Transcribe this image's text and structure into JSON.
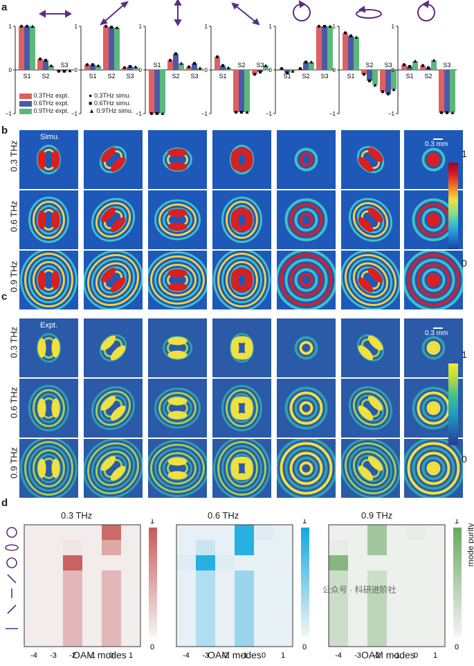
{
  "panels": {
    "a": "a",
    "b": "b",
    "c": "c",
    "d": "d"
  },
  "bar_legend": {
    "expt": [
      "0.3THz expt.",
      "0.6THz expt.",
      "0.9THz expt."
    ],
    "simu": [
      "0.3THz simu.",
      "0.6THz simu.",
      "0.9THz simu."
    ]
  },
  "bar_colors": [
    "#e06060",
    "#4a5aa8",
    "#5cb87a"
  ],
  "stokes_labels": [
    "S1",
    "S2",
    "S3"
  ],
  "bar_axis_ticks": [
    "1",
    "0",
    "−1"
  ],
  "pol_icons": [
    "horizontal-arrow",
    "diagonal-arrow",
    "vertical-arrow",
    "antidiagonal-arrow",
    "circular-right",
    "ellipse",
    "circular-left"
  ],
  "chart_data": [
    {
      "type": "bar",
      "categories": [
        "S1",
        "S2",
        "S3"
      ],
      "series": [
        {
          "name": "0.3THz expt.",
          "values": [
            1.0,
            0.25,
            -0.03
          ]
        },
        {
          "name": "0.6THz expt.",
          "values": [
            1.0,
            0.22,
            -0.03
          ]
        },
        {
          "name": "0.9THz expt.",
          "values": [
            1.0,
            0.1,
            -0.02
          ]
        }
      ],
      "ylim": [
        -1,
        1
      ]
    },
    {
      "type": "bar",
      "categories": [
        "S1",
        "S2",
        "S3"
      ],
      "series": [
        {
          "name": "0.3THz expt.",
          "values": [
            0.12,
            1.0,
            0.05
          ]
        },
        {
          "name": "0.6THz expt.",
          "values": [
            0.12,
            0.98,
            0.08
          ]
        },
        {
          "name": "0.9THz expt.",
          "values": [
            0.1,
            0.97,
            0.07
          ]
        }
      ],
      "ylim": [
        -1,
        1
      ]
    },
    {
      "type": "bar",
      "categories": [
        "S1",
        "S2",
        "S3"
      ],
      "series": [
        {
          "name": "0.3THz expt.",
          "values": [
            -1.0,
            0.22,
            0.07
          ]
        },
        {
          "name": "0.6THz expt.",
          "values": [
            -1.0,
            0.37,
            0.15
          ]
        },
        {
          "name": "0.9THz expt.",
          "values": [
            -1.0,
            0.15,
            0.04
          ]
        }
      ],
      "ylim": [
        -1,
        1
      ]
    },
    {
      "type": "bar",
      "categories": [
        "S1",
        "S2",
        "S3"
      ],
      "series": [
        {
          "name": "0.3THz expt.",
          "values": [
            0.3,
            -0.97,
            -0.1
          ]
        },
        {
          "name": "0.6THz expt.",
          "values": [
            0.1,
            -0.97,
            -0.05
          ]
        },
        {
          "name": "0.9THz expt.",
          "values": [
            0.05,
            -0.97,
            0.1
          ]
        }
      ],
      "ylim": [
        -1,
        1
      ]
    },
    {
      "type": "bar",
      "categories": [
        "S1",
        "S2",
        "S3"
      ],
      "series": [
        {
          "name": "0.3THz expt.",
          "values": [
            0.03,
            0.03,
            1.0
          ]
        },
        {
          "name": "0.6THz expt.",
          "values": [
            -0.07,
            0.18,
            1.0
          ]
        },
        {
          "name": "0.9THz expt.",
          "values": [
            -0.03,
            0.18,
            1.0
          ]
        }
      ],
      "ylim": [
        -1,
        1
      ]
    },
    {
      "type": "bar",
      "categories": [
        "S1",
        "S2",
        "S3"
      ],
      "series": [
        {
          "name": "0.3THz expt.",
          "values": [
            0.85,
            -0.1,
            -0.5
          ]
        },
        {
          "name": "0.6THz expt.",
          "values": [
            0.78,
            -0.25,
            -0.55
          ]
        },
        {
          "name": "0.9THz expt.",
          "values": [
            0.75,
            -0.35,
            -0.45
          ]
        }
      ],
      "ylim": [
        -1,
        1
      ]
    },
    {
      "type": "bar",
      "categories": [
        "S1",
        "S2",
        "S3"
      ],
      "series": [
        {
          "name": "0.3THz expt.",
          "values": [
            0.12,
            0.1,
            -0.98
          ]
        },
        {
          "name": "0.6THz expt.",
          "values": [
            0.08,
            0.05,
            -0.98
          ]
        },
        {
          "name": "0.9THz expt.",
          "values": [
            0.2,
            0.22,
            -0.98
          ]
        }
      ],
      "ylim": [
        -1,
        1
      ]
    }
  ],
  "simu": {
    "note": "Simu.",
    "scale": "0.3 mm",
    "rows": [
      "0.3 THz",
      "0.6 THz",
      "0.9 THz"
    ],
    "cb_max": "1",
    "cb_min": "0"
  },
  "expt": {
    "note": "Expt.",
    "scale": "0.3 mm",
    "rows": [
      "0.3 THz",
      "0.6 THz",
      "0.9 THz"
    ],
    "cb_max": "1",
    "cb_min": "0"
  },
  "heatmaps": {
    "titles": [
      "0.3 THz",
      "0.6 THz",
      "0.9 THz"
    ],
    "xlabel": "OAM modes",
    "xticks": [
      "-4",
      "-3",
      "-2",
      "-1",
      "0",
      "1"
    ],
    "cb_max": "1",
    "cb_min": "0",
    "cb_label": "mode purity",
    "colors": [
      "#c85a5a",
      "#10a8e0",
      "#6aa860"
    ]
  },
  "watermark": "公众号 · 科研进阶社"
}
